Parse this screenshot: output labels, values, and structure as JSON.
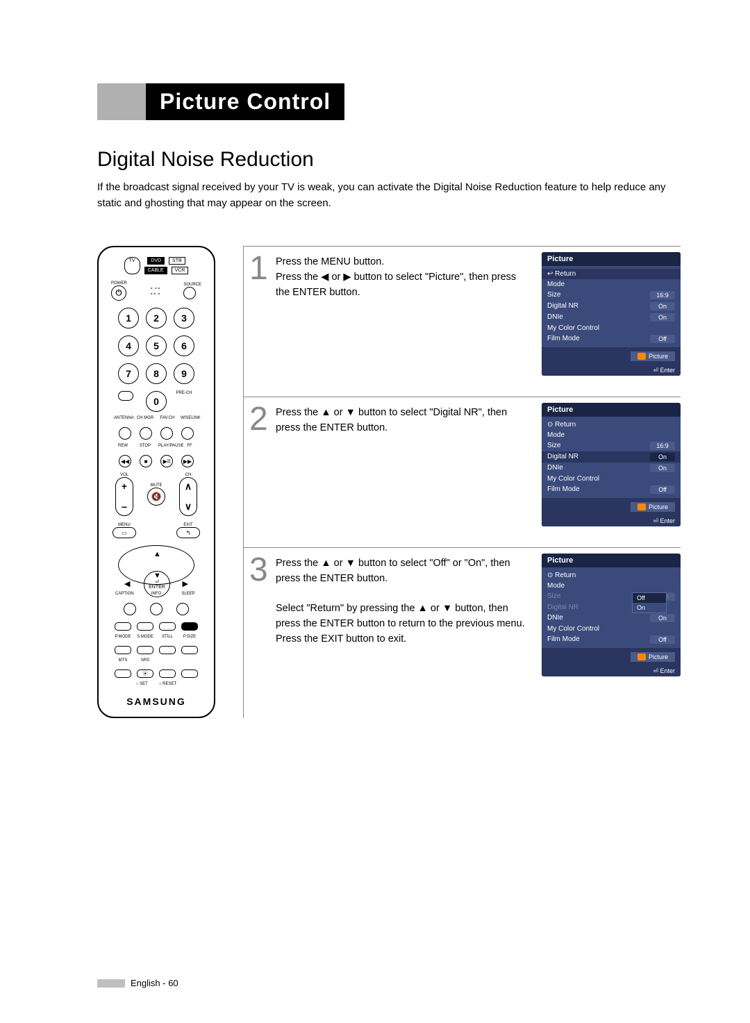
{
  "header": {
    "title": "Picture Control"
  },
  "section": {
    "heading": "Digital Noise Reduction",
    "intro": "If the broadcast signal received by your TV is weak, you can activate the Digital Noise Reduction feature to help reduce any static and ghosting that may appear on the screen."
  },
  "remote": {
    "sources_top": [
      "DVD",
      "STB"
    ],
    "tv": "TV",
    "sources_bot": [
      "CABLE",
      "VCR"
    ],
    "power": "POWER",
    "source": "SOURCE",
    "prech": "PRE-CH",
    "row4_labels": [
      "ANTENNA",
      "CH MGR",
      "FAV.CH",
      "WISELINK"
    ],
    "transport_labels": [
      "REW",
      "STOP",
      "PLAY/PAUSE",
      "FF"
    ],
    "vol": "VOL",
    "ch": "CH",
    "mute": "MUTE",
    "menu": "MENU",
    "exit": "EXIT",
    "enter": "ENTER",
    "row_cis": [
      "CAPTION",
      "INFO",
      "SLEEP"
    ],
    "row_pm": [
      "P.MODE",
      "S.MODE",
      "STILL",
      "P.SIZE"
    ],
    "row_ms": [
      "MTS",
      "SRS",
      "",
      ""
    ],
    "set_reset": [
      "SET",
      "RESET"
    ],
    "brand": "SAMSUNG"
  },
  "steps": [
    {
      "num": "1",
      "text": "Press the MENU button.\nPress the ◀ or ▶ button to select \"Picture\", then press the ENTER button."
    },
    {
      "num": "2",
      "text": "Press the ▲ or ▼ button to select \"Digital NR\", then press the ENTER button."
    },
    {
      "num": "3",
      "text": "Press the ▲ or ▼ button to select \"Off\" or \"On\", then press the ENTER button.\n\nSelect \"Return\" by pressing the ▲ or ▼ button, then press the ENTER button to return to the previous menu. Press the EXIT button to exit."
    }
  ],
  "osd": {
    "title": "Picture",
    "return": "Return",
    "rows": [
      {
        "label": "Mode",
        "val": ""
      },
      {
        "label": "Size",
        "val": "16:9"
      },
      {
        "label": "Digital NR",
        "val": "On"
      },
      {
        "label": "DNIe",
        "val": "On"
      },
      {
        "label": "My Color Control",
        "val": ""
      },
      {
        "label": "Film Mode",
        "val": "Off"
      }
    ],
    "picture_btn": "Picture",
    "enter": "Enter",
    "dropdown": {
      "off": "Off",
      "on": "On"
    },
    "colors": {
      "bg": "#2a3a6a",
      "body": "#3a4a7a",
      "title_bg": "#1a2545",
      "val_bg": "#4a5a8a",
      "icon": "#ff8800"
    }
  },
  "footer": {
    "text": "English - 60"
  }
}
